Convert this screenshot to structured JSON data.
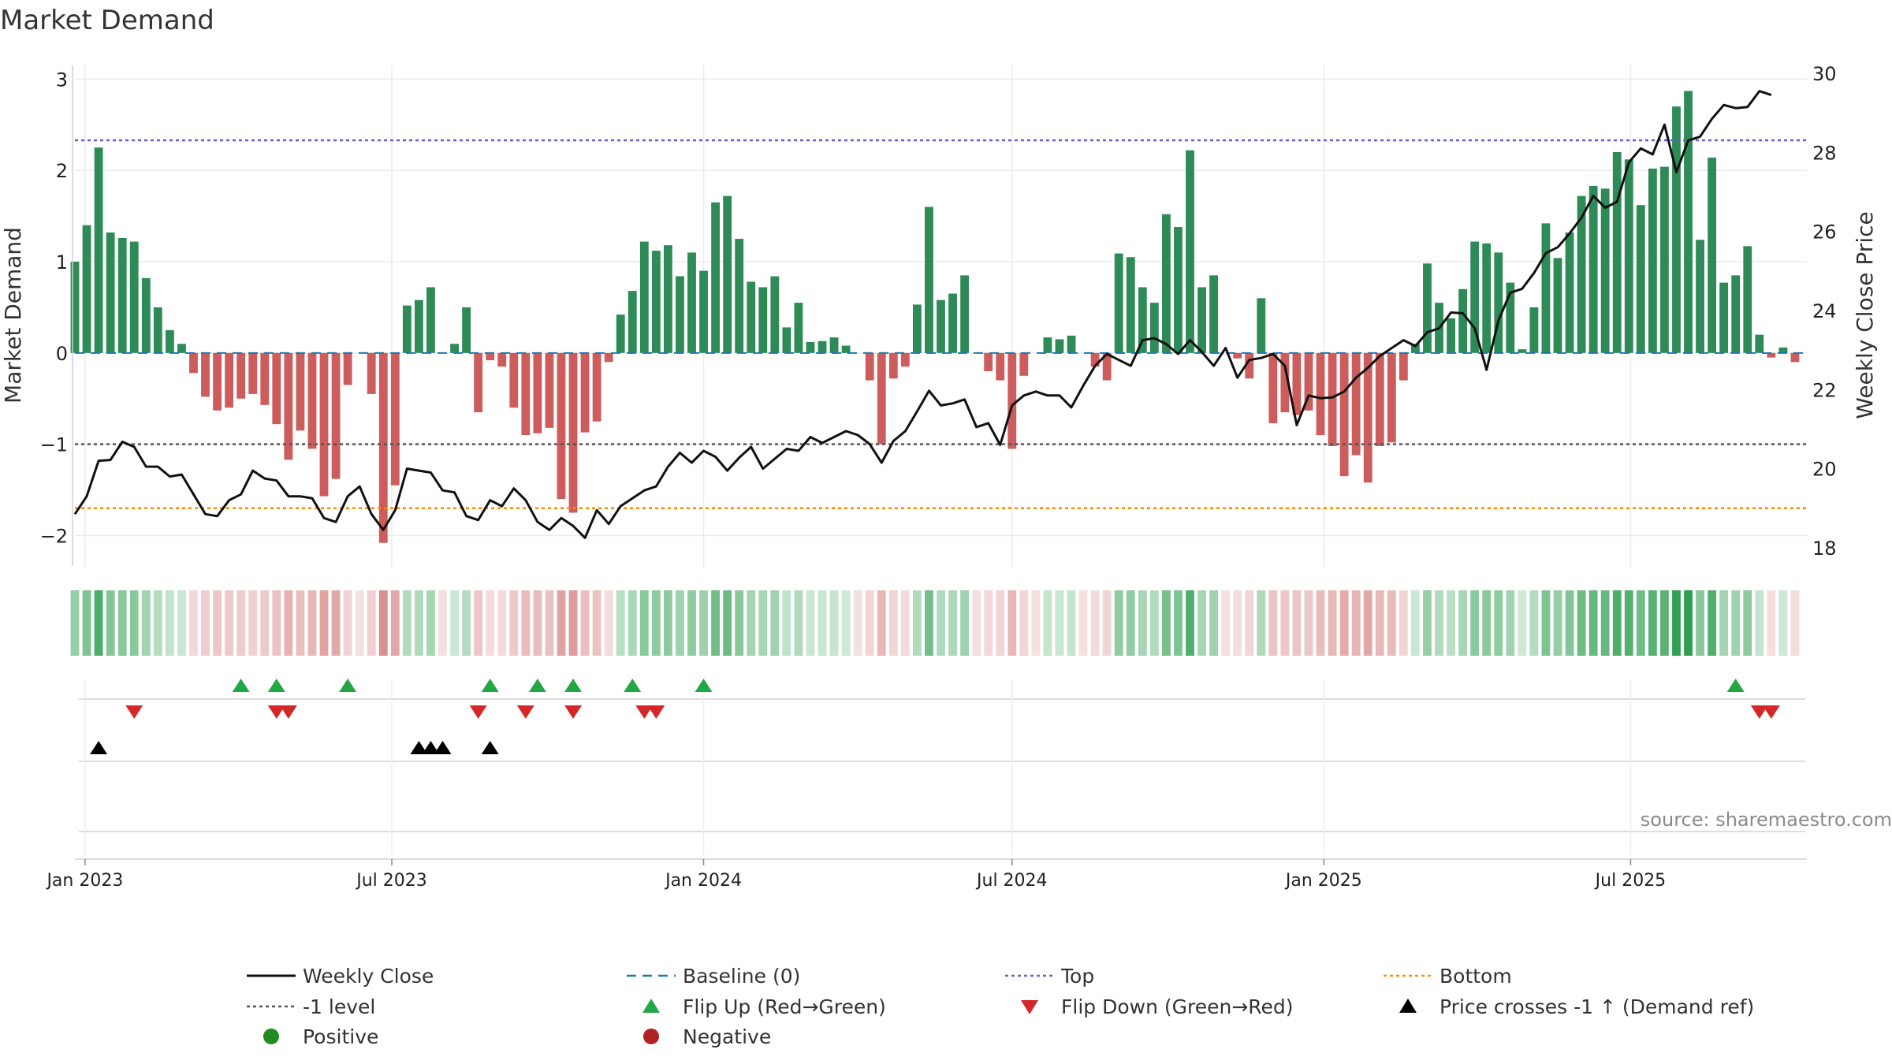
{
  "chart_data": {
    "type": "bar",
    "title": "Market Demand",
    "ylabel": "Market Demand",
    "y2label": "Weekly Close Price",
    "ylim": [
      -2.35,
      3.15
    ],
    "y2lim": [
      17.5,
      30.2
    ],
    "yticks": [
      3,
      2,
      1,
      0,
      -1,
      -2
    ],
    "ytick_labels": [
      "3",
      "2",
      "1",
      "0",
      "−1",
      "−2"
    ],
    "y2ticks": [
      30,
      28,
      26,
      24,
      22,
      20,
      18
    ],
    "y2tick_labels": [
      "30",
      "28",
      "26",
      "24",
      "22",
      "20",
      "18"
    ],
    "x_start": "2022-12-26",
    "x_end": "2025-10-13",
    "xtick_dates": [
      "2023-01-01",
      "2023-07-01",
      "2024-01-01",
      "2024-07-01",
      "2025-01-01",
      "2025-07-01"
    ],
    "xtick_labels": [
      "Jan 2023",
      "Jul 2023",
      "Jan 2024",
      "Jul 2024",
      "Jan 2025",
      "Jul 2025"
    ],
    "first_week": "2022-12-26",
    "bar_values": [
      1.0,
      1.4,
      2.25,
      1.32,
      1.26,
      1.22,
      0.82,
      0.5,
      0.25,
      0.1,
      -0.22,
      -0.48,
      -0.63,
      -0.6,
      -0.5,
      -0.45,
      -0.57,
      -0.78,
      -1.17,
      -0.85,
      -1.05,
      -1.57,
      -1.38,
      -0.35,
      0.0,
      -0.45,
      -2.08,
      -1.45,
      0.52,
      0.58,
      0.72,
      0.0,
      0.1,
      0.5,
      -0.65,
      -0.08,
      -0.15,
      -0.6,
      -0.9,
      -0.88,
      -0.82,
      -1.6,
      -1.75,
      -0.87,
      -0.75,
      -0.1,
      0.42,
      0.68,
      1.22,
      1.12,
      1.18,
      0.84,
      1.1,
      0.9,
      1.65,
      1.72,
      1.25,
      0.78,
      0.72,
      0.84,
      0.28,
      0.55,
      0.12,
      0.13,
      0.17,
      0.08,
      0.0,
      -0.3,
      -1.0,
      -0.28,
      -0.15,
      0.53,
      1.6,
      0.58,
      0.65,
      0.85,
      0.0,
      -0.2,
      -0.3,
      -1.05,
      -0.25,
      0.0,
      0.17,
      0.15,
      0.19,
      0.0,
      -0.15,
      -0.3,
      1.09,
      1.05,
      0.72,
      0.55,
      1.52,
      1.38,
      2.22,
      0.72,
      0.85,
      0.0,
      -0.06,
      -0.28,
      0.6,
      -0.77,
      -0.65,
      -0.68,
      -0.63,
      -0.9,
      -1.02,
      -1.35,
      -1.12,
      -1.42,
      -1.02,
      -0.98,
      -0.3,
      0.1,
      0.98,
      0.55,
      0.38,
      0.7,
      1.22,
      1.2,
      1.1,
      0.77,
      0.04,
      0.5,
      1.42,
      1.04,
      1.32,
      1.72,
      1.83,
      1.8,
      2.2,
      2.12,
      1.62,
      2.02,
      2.04,
      2.7,
      2.87,
      1.24,
      2.14,
      0.77,
      0.85,
      1.17,
      0.2,
      -0.05,
      0.06,
      -0.1
    ],
    "close_values": [
      18.85,
      19.3,
      20.2,
      20.22,
      20.68,
      20.55,
      20.05,
      20.05,
      19.8,
      19.85,
      19.35,
      18.85,
      18.8,
      19.2,
      19.35,
      19.95,
      19.75,
      19.7,
      19.3,
      19.3,
      19.25,
      18.75,
      18.65,
      19.3,
      19.55,
      18.85,
      18.45,
      18.95,
      20.0,
      19.95,
      19.9,
      19.45,
      19.4,
      18.8,
      18.7,
      19.2,
      19.05,
      19.5,
      19.2,
      18.65,
      18.45,
      18.75,
      18.55,
      18.25,
      18.95,
      18.6,
      19.05,
      19.25,
      19.45,
      19.55,
      20.05,
      20.4,
      20.15,
      20.45,
      20.3,
      19.95,
      20.28,
      20.55,
      20.0,
      20.25,
      20.5,
      20.45,
      20.8,
      20.65,
      20.8,
      20.95,
      20.85,
      20.62,
      20.15,
      20.7,
      20.95,
      21.45,
      21.97,
      21.6,
      21.65,
      21.75,
      21.05,
      21.15,
      20.6,
      21.6,
      21.85,
      21.95,
      21.85,
      21.85,
      21.55,
      22.1,
      22.6,
      22.9,
      22.75,
      22.6,
      23.25,
      23.3,
      23.15,
      22.9,
      23.25,
      22.95,
      22.6,
      23.05,
      22.3,
      22.75,
      22.8,
      22.9,
      22.6,
      21.1,
      21.85,
      21.78,
      21.8,
      21.95,
      22.3,
      22.55,
      22.85,
      23.05,
      23.25,
      23.1,
      23.45,
      23.55,
      23.95,
      23.93,
      23.55,
      22.5,
      23.75,
      24.45,
      24.55,
      24.95,
      25.45,
      25.6,
      25.95,
      26.35,
      26.9,
      26.6,
      26.75,
      27.75,
      28.1,
      27.95,
      28.7,
      27.5,
      28.3,
      28.4,
      28.85,
      29.2,
      29.12,
      29.15,
      29.55,
      29.45
    ],
    "top_level": 2.33,
    "bottom_level": -1.7,
    "minus1_level": -1.0,
    "baseline_level": 0,
    "flip_up_weeks": [
      14,
      17,
      23,
      35,
      39,
      42,
      47,
      53,
      140
    ],
    "flip_down_weeks": [
      5,
      17,
      18,
      34,
      38,
      42,
      48,
      49,
      142,
      143
    ],
    "price_cross_weeks": [
      2,
      29,
      30,
      31,
      35
    ],
    "source_text": "source: sharemaestro.com",
    "legend": [
      {
        "key": "close",
        "label": "Weekly Close"
      },
      {
        "key": "baseline",
        "label": "Baseline (0)"
      },
      {
        "key": "top",
        "label": "Top"
      },
      {
        "key": "bottom",
        "label": "Bottom"
      },
      {
        "key": "minus1",
        "label": "-1 level"
      },
      {
        "key": "flipup",
        "label": "Flip Up (Red→Green)"
      },
      {
        "key": "flipdown",
        "label": "Flip Down (Green→Red)"
      },
      {
        "key": "cross",
        "label": "Price crosses -1 ↑ (Demand ref)"
      },
      {
        "key": "positive",
        "label": "Positive"
      },
      {
        "key": "negative",
        "label": "Negative"
      }
    ],
    "colors": {
      "positive_bar": "#2e8b57",
      "negative_bar": "#cd5c5c",
      "close_line": "#111111",
      "baseline": "#1f77b4",
      "top": "#6a5acd",
      "bottom": "#ff8c00",
      "minus1": "#555555",
      "flip_up": "#22a745",
      "flip_down": "#d62728",
      "cross": "#000000",
      "positive_dot": "#228b22",
      "negative_dot": "#b22222",
      "strip_positive": "#2e9e4f",
      "strip_negative": "#c95b5b"
    }
  }
}
